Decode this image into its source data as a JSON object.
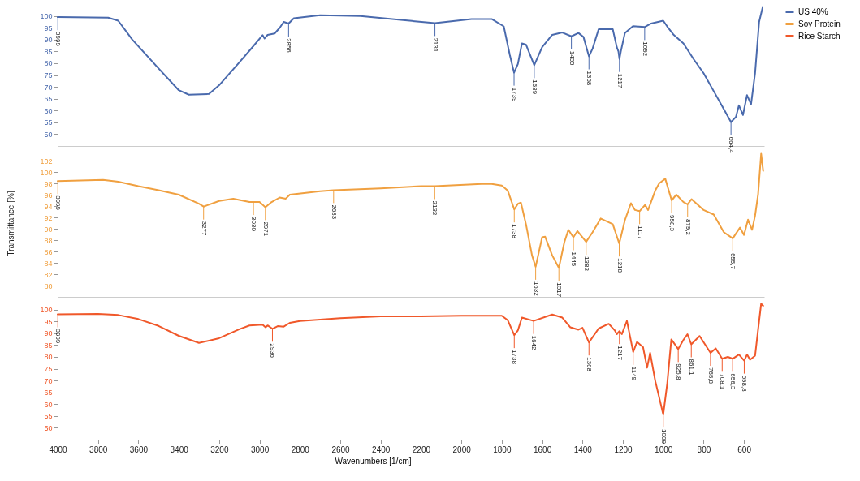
{
  "chart_data": [
    {
      "type": "line",
      "xlim": [
        4000,
        500
      ],
      "xticks": [
        4000,
        3800,
        3600,
        3400,
        3200,
        3000,
        2800,
        2600,
        2400,
        2200,
        2000,
        1800,
        1600,
        1400,
        1200,
        1000,
        800,
        600
      ],
      "ylim": [
        45,
        104
      ],
      "yticks": [
        50,
        55,
        60,
        65,
        70,
        75,
        80,
        85,
        90,
        95,
        100
      ],
      "tick_labels": "y",
      "legend": "right",
      "series": [
        {
          "name": "US 40%",
          "color": "#4a6aad",
          "x": [
            4000,
            3750,
            3700,
            3630,
            3500,
            3400,
            3350,
            3250,
            3200,
            3100,
            3043,
            2985,
            2975,
            2960,
            2925,
            2900,
            2880,
            2856,
            2830,
            2700,
            2500,
            2300,
            2131,
            1950,
            1850,
            1790,
            1760,
            1739,
            1720,
            1700,
            1680,
            1639,
            1600,
            1550,
            1500,
            1455,
            1420,
            1395,
            1368,
            1350,
            1320,
            1250,
            1230,
            1222,
            1217,
            1210,
            1190,
            1150,
            1092,
            1060,
            1000,
            980,
            950,
            900,
            850,
            800,
            750,
            700,
            664.4,
            640,
            625,
            605,
            585,
            565,
            545,
            525,
            508
          ],
          "values": [
            99.5,
            99.3,
            98,
            90,
            77.8,
            68.6,
            66.7,
            67,
            70.7,
            80.4,
            86,
            91.9,
            90.5,
            92,
            92.6,
            95,
            97.5,
            96.8,
            99,
            100.3,
            100,
            98.3,
            97,
            98.7,
            98.7,
            95.6,
            83.5,
            76,
            79.7,
            88.4,
            87.9,
            79.2,
            86.8,
            92,
            93,
            91.4,
            92.8,
            91.1,
            82.9,
            86.2,
            94.4,
            94.4,
            86.8,
            85,
            81.8,
            85,
            92.8,
            95.7,
            95.3,
            96.8,
            98,
            95.5,
            92.2,
            88.4,
            81.8,
            75.8,
            68.2,
            60.6,
            55.1,
            57.3,
            62.2,
            58.1,
            66.5,
            62.6,
            75.8,
            97.5,
            103.5
          ]
        }
      ],
      "annotations": [
        {
          "text": "3999",
          "x": 3999,
          "y": 99.5
        },
        {
          "text": "2856",
          "x": 2856,
          "y": 96.8
        },
        {
          "text": "2131",
          "x": 2131,
          "y": 97
        },
        {
          "text": "1739",
          "x": 1739,
          "y": 76
        },
        {
          "text": "1639",
          "x": 1639,
          "y": 79.2
        },
        {
          "text": "1455",
          "x": 1455,
          "y": 91.4
        },
        {
          "text": "1368",
          "x": 1368,
          "y": 82.9
        },
        {
          "text": "1217",
          "x": 1217,
          "y": 81.8
        },
        {
          "text": "1092",
          "x": 1092,
          "y": 95.3
        },
        {
          "text": "664,4",
          "x": 664.4,
          "y": 55.1
        }
      ]
    },
    {
      "type": "line",
      "xlim": [
        4000,
        500
      ],
      "xticks": [
        4000,
        3800,
        3600,
        3400,
        3200,
        3000,
        2800,
        2600,
        2400,
        2200,
        2000,
        1800,
        1600,
        1400,
        1200,
        1000,
        800,
        600
      ],
      "ylim": [
        78,
        104
      ],
      "yticks": [
        80,
        82,
        84,
        86,
        88,
        90,
        92,
        94,
        96,
        98,
        100,
        102
      ],
      "tick_labels": "y",
      "ylabel": "Transmittance [%]",
      "series": [
        {
          "name": "Soy Protein",
          "color": "#f0a040",
          "x": [
            4000,
            3775,
            3700,
            3600,
            3500,
            3400,
            3300,
            3277,
            3200,
            3130,
            3050,
            3000,
            2971,
            2940,
            2900,
            2870,
            2850,
            2700,
            2633,
            2400,
            2200,
            2132,
            1900,
            1850,
            1800,
            1770,
            1738,
            1720,
            1705,
            1680,
            1650,
            1632,
            1600,
            1585,
            1550,
            1517,
            1490,
            1470,
            1445,
            1425,
            1382,
            1350,
            1310,
            1280,
            1250,
            1218,
            1190,
            1160,
            1140,
            1117,
            1090,
            1075,
            1040,
            1020,
            990,
            958.3,
            935,
            900,
            879.2,
            860,
            800,
            750,
            700,
            655.7,
            620,
            600,
            580,
            560,
            545,
            530,
            515,
            505
          ],
          "values": [
            98.4,
            98.6,
            98.3,
            97.5,
            96.8,
            96,
            94.4,
            93.9,
            94.9,
            95.3,
            94.7,
            94.7,
            93.8,
            94.7,
            95.5,
            95.3,
            96,
            96.6,
            96.8,
            97.1,
            97.5,
            97.5,
            97.9,
            97.9,
            97.6,
            96.7,
            93.4,
            94.4,
            94.6,
            90.8,
            85.3,
            83.3,
            88.5,
            88.6,
            85.3,
            83.1,
            87.6,
            89.8,
            88.5,
            89.6,
            87.7,
            89.4,
            91.8,
            91.3,
            90.8,
            87.4,
            91.5,
            94.5,
            93.3,
            93.1,
            94.2,
            93.3,
            96.7,
            98,
            98.8,
            95,
            96,
            94.7,
            94.3,
            95.2,
            93.3,
            92.5,
            89.4,
            88.3,
            90.2,
            88.9,
            91.6,
            89.8,
            92.3,
            96.1,
            103.2,
            100.2
          ]
        }
      ],
      "annotations": [
        {
          "text": "3999",
          "x": 3999,
          "y": 98.4
        },
        {
          "text": "3277",
          "x": 3277,
          "y": 93.9
        },
        {
          "text": "3030",
          "x": 3030,
          "y": 94.7
        },
        {
          "text": "2971",
          "x": 2971,
          "y": 93.8
        },
        {
          "text": "2633",
          "x": 2633,
          "y": 96.8
        },
        {
          "text": "2132",
          "x": 2132,
          "y": 97.5
        },
        {
          "text": "1738",
          "x": 1738,
          "y": 93.4
        },
        {
          "text": "1632",
          "x": 1632,
          "y": 83.3
        },
        {
          "text": "1517",
          "x": 1517,
          "y": 83.1
        },
        {
          "text": "1445",
          "x": 1445,
          "y": 88.5
        },
        {
          "text": "1382",
          "x": 1382,
          "y": 87.7
        },
        {
          "text": "1218",
          "x": 1218,
          "y": 87.4
        },
        {
          "text": "1117",
          "x": 1117,
          "y": 93.1
        },
        {
          "text": "958,3",
          "x": 958.3,
          "y": 95
        },
        {
          "text": "879,2",
          "x": 879.2,
          "y": 94.3
        },
        {
          "text": "655,7",
          "x": 655.7,
          "y": 88.3
        }
      ]
    },
    {
      "type": "line",
      "xlim": [
        4000,
        500
      ],
      "xticks": [
        4000,
        3800,
        3600,
        3400,
        3200,
        3000,
        2800,
        2600,
        2400,
        2200,
        2000,
        1800,
        1600,
        1400,
        1200,
        1000,
        800,
        600
      ],
      "ylim": [
        45,
        104
      ],
      "yticks": [
        50,
        55,
        60,
        65,
        70,
        75,
        80,
        85,
        90,
        95,
        100
      ],
      "xlabel": "Wavenumbers [1/cm]",
      "series": [
        {
          "name": "Rice Starch",
          "color": "#f0582a",
          "x": [
            4000,
            3800,
            3700,
            3600,
            3500,
            3400,
            3300,
            3200,
            3100,
            3050,
            2985,
            2970,
            2960,
            2936,
            2910,
            2880,
            2850,
            2800,
            2600,
            2400,
            2200,
            2000,
            1800,
            1770,
            1738,
            1720,
            1700,
            1642,
            1550,
            1500,
            1460,
            1420,
            1400,
            1368,
            1320,
            1270,
            1240,
            1230,
            1217,
            1205,
            1180,
            1149,
            1130,
            1100,
            1080,
            1065,
            1040,
            1000,
            980,
            960,
            925.8,
            900,
            880,
            861.1,
            820,
            765.8,
            740,
            708.1,
            680,
            656.3,
            625,
            598.8,
            585,
            570,
            545,
            530,
            515,
            505
          ],
          "values": [
            98,
            98.2,
            97.7,
            96,
            93.1,
            88.9,
            85.9,
            87.9,
            91.7,
            93.3,
            93.6,
            92.5,
            93.3,
            91.9,
            93,
            92.8,
            94.4,
            95.2,
            96.4,
            97.1,
            97.1,
            97.4,
            97.4,
            95.5,
            89.2,
            91.2,
            96.6,
            95.2,
            97.9,
            96.6,
            92.5,
            91.5,
            92.3,
            86.1,
            92,
            94,
            91.2,
            89.6,
            90.9,
            89.6,
            95.2,
            82.1,
            86.3,
            84.1,
            75.4,
            81.7,
            70,
            55.6,
            68.9,
            87.4,
            83.3,
            87.2,
            89.6,
            85.3,
            88.8,
            81.7,
            83.6,
            79.2,
            80,
            79.2,
            81,
            78.4,
            81,
            78.8,
            80.5,
            91.6,
            102.5,
            101.6
          ]
        }
      ],
      "annotations": [
        {
          "text": "3999",
          "x": 3999,
          "y": 98
        },
        {
          "text": "2936",
          "x": 2936,
          "y": 91.9
        },
        {
          "text": "1738",
          "x": 1738,
          "y": 89.2
        },
        {
          "text": "1642",
          "x": 1642,
          "y": 95.2
        },
        {
          "text": "1368",
          "x": 1368,
          "y": 86.1
        },
        {
          "text": "1217",
          "x": 1217,
          "y": 90.9
        },
        {
          "text": "1149",
          "x": 1149,
          "y": 82.1
        },
        {
          "text": "1000",
          "x": 1000,
          "y": 55.6
        },
        {
          "text": "925,8",
          "x": 925.8,
          "y": 83.3
        },
        {
          "text": "861,1",
          "x": 861.1,
          "y": 85.3
        },
        {
          "text": "765,8",
          "x": 765.8,
          "y": 81.7
        },
        {
          "text": "708,1",
          "x": 708.1,
          "y": 79.2
        },
        {
          "text": "656,3",
          "x": 656.3,
          "y": 79.2
        },
        {
          "text": "598,8",
          "x": 598.8,
          "y": 78.4
        }
      ]
    }
  ]
}
